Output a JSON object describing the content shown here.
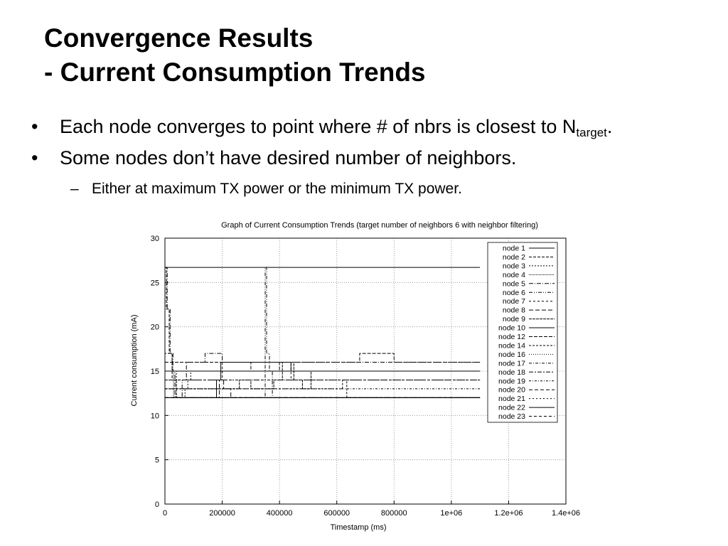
{
  "slide": {
    "title_line1": "Convergence Results",
    "title_line2": "- Current Consumption Trends",
    "bullets": [
      {
        "text": "Each node converges to point where # of nbrs is closest to N",
        "sub": "target",
        "tail": "."
      },
      {
        "text": "Some nodes don’t have desired number of neighbors."
      }
    ],
    "subbullet": "Either at maximum TX power or the minimum TX power.",
    "bullet_char": "•",
    "dash_char": "–"
  },
  "chart_data": {
    "type": "line",
    "title": "Graph of Current Consumption Trends (target number of neighbors 6 with neighbor filtering)",
    "xlabel": "Timestamp (ms)",
    "ylabel": "Current consumption (mA)",
    "xlim": [
      0,
      1400000
    ],
    "ylim": [
      0,
      30
    ],
    "xticks": [
      0,
      200000,
      400000,
      600000,
      800000,
      1000000,
      1200000,
      1400000
    ],
    "xtick_labels": [
      "0",
      "200000",
      "400000",
      "600000",
      "800000",
      "1e+06",
      "1.2e+06",
      "1.4e+06"
    ],
    "yticks": [
      0,
      5,
      10,
      15,
      20,
      25,
      30
    ],
    "ytick_labels": [
      "0",
      "5",
      "10",
      "15",
      "20",
      "25",
      "30"
    ],
    "grid": true,
    "legend_position": "top-right",
    "series": [
      {
        "name": "node 1",
        "dash": "",
        "points": [
          [
            0,
            26.7
          ],
          [
            1100000,
            26.7
          ]
        ]
      },
      {
        "name": "node 2",
        "dash": "4,2",
        "points": [
          [
            0,
            26.7
          ],
          [
            5000,
            26.7
          ],
          [
            5000,
            22
          ],
          [
            15000,
            22
          ],
          [
            15000,
            17
          ],
          [
            25000,
            17
          ],
          [
            25000,
            14
          ],
          [
            40000,
            14
          ],
          [
            40000,
            12
          ],
          [
            1100000,
            12
          ]
        ]
      },
      {
        "name": "node 3",
        "dash": "2,2",
        "points": [
          [
            0,
            17
          ],
          [
            25000,
            17
          ],
          [
            25000,
            15
          ],
          [
            40000,
            15
          ],
          [
            40000,
            12
          ],
          [
            70000,
            12
          ],
          [
            70000,
            13
          ],
          [
            80000,
            13
          ],
          [
            80000,
            14
          ],
          [
            90000,
            14
          ],
          [
            90000,
            15
          ],
          [
            1100000,
            15
          ]
        ]
      },
      {
        "name": "node 4",
        "dash": "1,1",
        "points": [
          [
            0,
            15
          ],
          [
            30000,
            15
          ],
          [
            30000,
            12
          ],
          [
            1100000,
            12
          ]
        ]
      },
      {
        "name": "node 5",
        "dash": "6,2,1,2",
        "points": [
          [
            0,
            26.7
          ],
          [
            8000,
            26.7
          ],
          [
            8000,
            22
          ],
          [
            18000,
            22
          ],
          [
            18000,
            17
          ],
          [
            28000,
            17
          ],
          [
            28000,
            15
          ],
          [
            35000,
            15
          ],
          [
            35000,
            12
          ],
          [
            60000,
            12
          ],
          [
            60000,
            14
          ],
          [
            75000,
            14
          ],
          [
            75000,
            16
          ],
          [
            140000,
            16
          ],
          [
            140000,
            17
          ],
          [
            200000,
            17
          ],
          [
            200000,
            16
          ],
          [
            1100000,
            16
          ]
        ]
      },
      {
        "name": "node 6",
        "dash": "5,2,1,2,1,2",
        "points": [
          [
            0,
            12
          ],
          [
            350000,
            12
          ],
          [
            350000,
            26.7
          ],
          [
            355000,
            26.7
          ],
          [
            355000,
            17
          ],
          [
            365000,
            17
          ],
          [
            365000,
            15
          ],
          [
            375000,
            15
          ],
          [
            375000,
            12
          ],
          [
            1100000,
            12
          ]
        ]
      },
      {
        "name": "node 7",
        "dash": "3,3",
        "points": [
          [
            0,
            14
          ],
          [
            200000,
            14
          ],
          [
            200000,
            16
          ],
          [
            440000,
            16
          ],
          [
            440000,
            14
          ],
          [
            1100000,
            14
          ]
        ]
      },
      {
        "name": "node 8",
        "dash": "6,3",
        "points": [
          [
            0,
            12
          ],
          [
            190000,
            12
          ],
          [
            190000,
            14
          ],
          [
            205000,
            14
          ],
          [
            205000,
            13
          ],
          [
            230000,
            13
          ],
          [
            230000,
            12
          ],
          [
            1100000,
            12
          ]
        ]
      },
      {
        "name": "node 9",
        "dash": "4,1",
        "points": [
          [
            0,
            13
          ],
          [
            260000,
            13
          ],
          [
            260000,
            14
          ],
          [
            300000,
            14
          ],
          [
            300000,
            13
          ],
          [
            380000,
            13
          ],
          [
            380000,
            14
          ],
          [
            410000,
            14
          ],
          [
            410000,
            16
          ],
          [
            450000,
            16
          ],
          [
            450000,
            14
          ],
          [
            480000,
            14
          ],
          [
            480000,
            13
          ],
          [
            510000,
            13
          ],
          [
            510000,
            15
          ],
          [
            1100000,
            15
          ]
        ]
      },
      {
        "name": "node 10",
        "dash": "",
        "points": [
          [
            0,
            12
          ],
          [
            180000,
            12
          ],
          [
            180000,
            14
          ],
          [
            195000,
            14
          ],
          [
            195000,
            16
          ],
          [
            440000,
            16
          ],
          [
            440000,
            15
          ],
          [
            1100000,
            15
          ]
        ]
      },
      {
        "name": "node 12",
        "dash": "5,2",
        "points": [
          [
            0,
            16
          ],
          [
            300000,
            16
          ],
          [
            300000,
            15
          ],
          [
            400000,
            15
          ],
          [
            400000,
            16
          ],
          [
            680000,
            16
          ],
          [
            680000,
            17
          ],
          [
            800000,
            17
          ],
          [
            800000,
            16
          ],
          [
            1100000,
            16
          ]
        ]
      },
      {
        "name": "node 14",
        "dash": "3,2",
        "points": [
          [
            0,
            13
          ],
          [
            620000,
            13
          ],
          [
            620000,
            14
          ],
          [
            635000,
            14
          ],
          [
            635000,
            12
          ],
          [
            1100000,
            12
          ]
        ]
      },
      {
        "name": "node 16",
        "dash": "1,2",
        "points": [
          [
            0,
            15
          ],
          [
            1100000,
            15
          ]
        ]
      },
      {
        "name": "node 17",
        "dash": "4,2,1,2",
        "points": [
          [
            0,
            14
          ],
          [
            1100000,
            14
          ]
        ]
      },
      {
        "name": "node 18",
        "dash": "6,2,2,2",
        "points": [
          [
            0,
            12
          ],
          [
            1100000,
            12
          ]
        ]
      },
      {
        "name": "node 19",
        "dash": "3,2,1,2",
        "points": [
          [
            0,
            13
          ],
          [
            1100000,
            13
          ]
        ]
      },
      {
        "name": "node 20",
        "dash": "5,3",
        "points": [
          [
            0,
            12
          ],
          [
            1100000,
            12
          ]
        ]
      },
      {
        "name": "node 21",
        "dash": "2,3",
        "points": [
          [
            0,
            14
          ],
          [
            1100000,
            14
          ]
        ]
      },
      {
        "name": "node 22",
        "dash": "",
        "points": [
          [
            0,
            15
          ],
          [
            1100000,
            15
          ]
        ]
      },
      {
        "name": "node 23",
        "dash": "4,3",
        "points": [
          [
            0,
            12
          ],
          [
            1100000,
            12
          ]
        ]
      }
    ]
  }
}
